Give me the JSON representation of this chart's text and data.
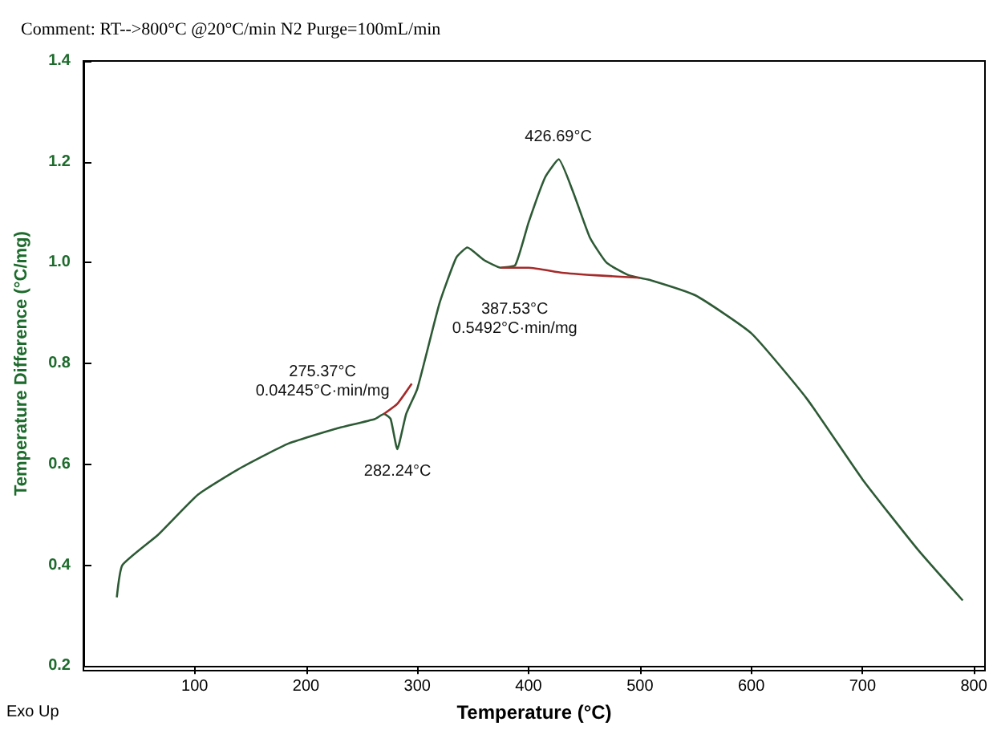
{
  "chart_data": {
    "type": "line",
    "title": "Comment: RT-->800°C @20°C/min N2 Purge=100mL/min",
    "xlabel": "Temperature (°C)",
    "ylabel": "Temperature Difference (°C/mg)",
    "xlim": [
      0,
      810
    ],
    "xticks": [
      100,
      200,
      300,
      400,
      500,
      600,
      700,
      800
    ],
    "ylim": [
      0.2,
      1.4
    ],
    "yticks": [
      0.2,
      0.4,
      0.6,
      0.8,
      {
        "value": 1,
        "label": "1.0"
      },
      1.2,
      1.4
    ],
    "grid": false,
    "marker": "none",
    "line_style": "solid",
    "series": [
      {
        "color": "#2d5a35",
        "x": [
          30,
          35,
          67,
          103,
          139,
          183,
          226,
          262,
          270,
          276,
          282,
          290,
          300,
          320,
          335,
          345,
          360,
          375,
          388,
          400,
          415,
          427,
          440,
          455,
          470,
          490,
          510,
          550,
          600,
          650,
          700,
          750,
          790
        ],
        "values": [
          0.336,
          0.4,
          0.46,
          0.54,
          0.59,
          0.64,
          0.67,
          0.69,
          0.7,
          0.69,
          0.63,
          0.7,
          0.75,
          0.92,
          1.01,
          1.03,
          1.005,
          0.99,
          0.995,
          1.08,
          1.17,
          1.205,
          1.14,
          1.05,
          1.0,
          0.975,
          0.965,
          0.935,
          0.86,
          0.73,
          0.57,
          0.43,
          0.33
        ]
      },
      {
        "color": "#a52a2a",
        "x": [
          270,
          282,
          295
        ],
        "values": [
          0.7,
          0.72,
          0.76
        ]
      },
      {
        "color": "#a52a2a",
        "x": [
          375,
          400,
          430,
          460,
          500
        ],
        "values": [
          0.99,
          0.99,
          0.98,
          0.975,
          0.97
        ]
      }
    ],
    "annotations": [
      {
        "text": "426.69°C",
        "x": 426.69,
        "y": 1.205
      },
      {
        "text": "275.37°C\n0.04245°C·min/mg",
        "x": 275.37,
        "y": 0.7
      },
      {
        "text": "282.24°C",
        "x": 282.24,
        "y": 0.63
      },
      {
        "text": "387.53°C\n0.5492°C·min/mg",
        "x": 387.53,
        "y": 0.99
      },
      "Exo Up"
    ]
  }
}
